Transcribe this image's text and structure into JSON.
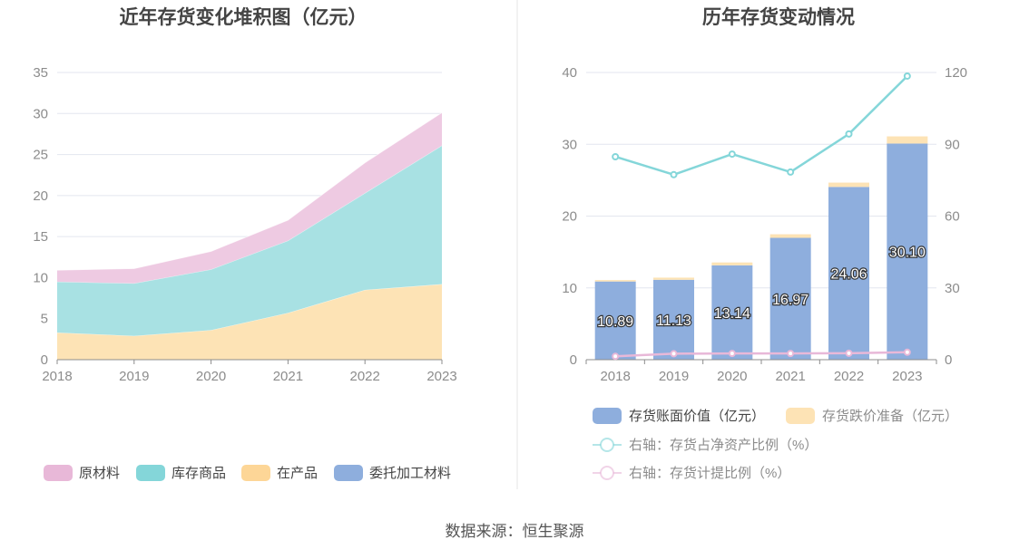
{
  "source": "数据来源：恒生聚源",
  "chart_data": [
    {
      "type": "area",
      "stacked": true,
      "title": "近年存货变化堆积图（亿元）",
      "x": [
        "2018",
        "2019",
        "2020",
        "2021",
        "2022",
        "2023"
      ],
      "ylim": [
        0,
        35
      ],
      "yticks": [
        0,
        5,
        10,
        15,
        20,
        25,
        30,
        35
      ],
      "series": [
        {
          "name": "委托加工材料",
          "color": "#8eaedd",
          "values": [
            0.0,
            0.0,
            0.0,
            0.0,
            0.0,
            0.0
          ]
        },
        {
          "name": "在产品",
          "color": "#fde3b5",
          "values": [
            3.3,
            2.9,
            3.6,
            5.7,
            8.5,
            9.2
          ]
        },
        {
          "name": "库存商品",
          "color": "#a8e1e3",
          "values": [
            6.2,
            6.4,
            7.4,
            8.8,
            11.8,
            16.9
          ]
        },
        {
          "name": "原材料",
          "color": "#eecae2",
          "values": [
            1.4,
            1.8,
            2.2,
            2.5,
            3.7,
            4.0
          ]
        }
      ],
      "legend": [
        {
          "name": "原材料",
          "color": "#e8b8d8"
        },
        {
          "name": "库存商品",
          "color": "#84d6d9"
        },
        {
          "name": "在产品",
          "color": "#fdd697"
        },
        {
          "name": "委托加工材料",
          "color": "#8eaedd"
        }
      ]
    },
    {
      "type": "bar+line",
      "title": "历年存货变动情况",
      "categories": [
        "2018",
        "2019",
        "2020",
        "2021",
        "2022",
        "2023"
      ],
      "ylim_left": [
        0,
        40
      ],
      "yticks_left": [
        0,
        10,
        20,
        30,
        40
      ],
      "ylim_right": [
        0,
        120
      ],
      "yticks_right": [
        0,
        30,
        60,
        90,
        120
      ],
      "bars": [
        {
          "name": "存货账面价值（亿元）",
          "color": "#8eaedd",
          "values": [
            10.89,
            11.13,
            13.14,
            16.97,
            24.06,
            30.1
          ],
          "labels": [
            "10.89",
            "11.13",
            "13.14",
            "16.97",
            "24.06",
            "30.10"
          ]
        },
        {
          "name": "存货跌价准备（亿元）",
          "color": "#fde3b5",
          "values": [
            0.2,
            0.3,
            0.4,
            0.5,
            0.6,
            1.0
          ]
        }
      ],
      "lines": [
        {
          "name": "右轴：存货占净资产比例（%）",
          "color": "#84d6d9",
          "values": [
            84.8,
            77.3,
            85.9,
            78.4,
            94.3,
            118.5
          ]
        },
        {
          "name": "右轴：存货计提比例（%）",
          "color": "#e8b8d8",
          "values": [
            1.4,
            2.5,
            2.6,
            2.6,
            2.7,
            3.1
          ]
        }
      ]
    }
  ]
}
